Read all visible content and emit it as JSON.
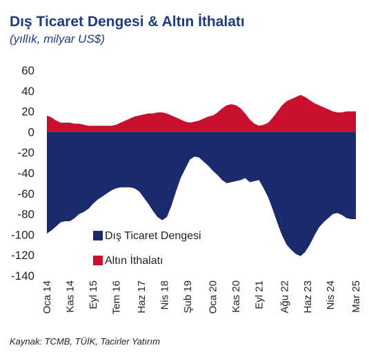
{
  "title": "Dış Ticaret Dengesi & Altın İthalatı",
  "subtitle": "(yıllık, milyar US$)",
  "source": "Kaynak: TCMB, TÜİK, Tacirler Yatırım",
  "colors": {
    "trade_balance": "#1b2a6b",
    "gold_imports": "#c8102e",
    "axis": "#555555"
  },
  "chart_data": {
    "type": "area",
    "y_ticks": [
      "60",
      "40",
      "20",
      "0",
      "-20",
      "-40",
      "-60",
      "-80",
      "-100",
      "-120",
      "-140"
    ],
    "ylim": [
      -140,
      60
    ],
    "x_range": [
      "2014-01",
      "2025-03"
    ],
    "x_ticks": [
      {
        "label": "Oca 14",
        "date": "2014-01"
      },
      {
        "label": "Kas 14",
        "date": "2014-11"
      },
      {
        "label": "Eyl 15",
        "date": "2015-09"
      },
      {
        "label": "Tem 16",
        "date": "2016-07"
      },
      {
        "label": "Haz 17",
        "date": "2017-06"
      },
      {
        "label": "Nis 18",
        "date": "2018-04"
      },
      {
        "label": "Şub 19",
        "date": "2019-02"
      },
      {
        "label": "Oca 20",
        "date": "2020-01"
      },
      {
        "label": "Kas 20",
        "date": "2020-11"
      },
      {
        "label": "Eyl 21",
        "date": "2021-09"
      },
      {
        "label": "Ağu 22",
        "date": "2022-08"
      },
      {
        "label": "Haz 23",
        "date": "2023-06"
      },
      {
        "label": "Nis 24",
        "date": "2024-04"
      },
      {
        "label": "Mar 25",
        "date": "2025-03"
      }
    ],
    "series": [
      {
        "name": "Dış Ticaret Dengesi",
        "points": [
          [
            "2014-01",
            -99
          ],
          [
            "2014-03",
            -96
          ],
          [
            "2014-05",
            -92
          ],
          [
            "2014-07",
            -88
          ],
          [
            "2014-09",
            -87
          ],
          [
            "2014-11",
            -87
          ],
          [
            "2015-01",
            -84
          ],
          [
            "2015-03",
            -80
          ],
          [
            "2015-05",
            -78
          ],
          [
            "2015-07",
            -75
          ],
          [
            "2015-09",
            -70
          ],
          [
            "2015-11",
            -66
          ],
          [
            "2016-01",
            -63
          ],
          [
            "2016-03",
            -60
          ],
          [
            "2016-05",
            -57
          ],
          [
            "2016-07",
            -55
          ],
          [
            "2016-09",
            -54
          ],
          [
            "2016-11",
            -54
          ],
          [
            "2017-01",
            -54
          ],
          [
            "2017-03",
            -55
          ],
          [
            "2017-05",
            -58
          ],
          [
            "2017-07",
            -64
          ],
          [
            "2017-09",
            -70
          ],
          [
            "2017-11",
            -77
          ],
          [
            "2018-01",
            -83
          ],
          [
            "2018-03",
            -86
          ],
          [
            "2018-05",
            -83
          ],
          [
            "2018-07",
            -72
          ],
          [
            "2018-09",
            -58
          ],
          [
            "2018-11",
            -45
          ],
          [
            "2019-01",
            -36
          ],
          [
            "2019-03",
            -27
          ],
          [
            "2019-05",
            -24
          ],
          [
            "2019-07",
            -25
          ],
          [
            "2019-09",
            -29
          ],
          [
            "2019-11",
            -33
          ],
          [
            "2020-01",
            -38
          ],
          [
            "2020-03",
            -42
          ],
          [
            "2020-05",
            -47
          ],
          [
            "2020-07",
            -50
          ],
          [
            "2020-09",
            -49
          ],
          [
            "2020-11",
            -48
          ],
          [
            "2021-01",
            -47
          ],
          [
            "2021-03",
            -45
          ],
          [
            "2021-05",
            -49
          ],
          [
            "2021-07",
            -48
          ],
          [
            "2021-09",
            -47
          ],
          [
            "2021-11",
            -55
          ],
          [
            "2022-01",
            -64
          ],
          [
            "2022-03",
            -76
          ],
          [
            "2022-05",
            -89
          ],
          [
            "2022-07",
            -101
          ],
          [
            "2022-09",
            -110
          ],
          [
            "2022-11",
            -115
          ],
          [
            "2023-01",
            -119
          ],
          [
            "2023-03",
            -121
          ],
          [
            "2023-05",
            -117
          ],
          [
            "2023-07",
            -110
          ],
          [
            "2023-09",
            -101
          ],
          [
            "2023-11",
            -93
          ],
          [
            "2024-01",
            -88
          ],
          [
            "2024-03",
            -84
          ],
          [
            "2024-05",
            -80
          ],
          [
            "2024-07",
            -79
          ],
          [
            "2024-09",
            -81
          ],
          [
            "2024-11",
            -84
          ],
          [
            "2025-01",
            -85
          ],
          [
            "2025-03",
            -85
          ]
        ]
      },
      {
        "name": "Altın İthalatı",
        "points": [
          [
            "2014-01",
            16
          ],
          [
            "2014-03",
            14
          ],
          [
            "2014-05",
            11
          ],
          [
            "2014-07",
            9
          ],
          [
            "2014-09",
            9
          ],
          [
            "2014-11",
            9
          ],
          [
            "2015-01",
            8
          ],
          [
            "2015-03",
            8
          ],
          [
            "2015-05",
            7
          ],
          [
            "2015-07",
            6
          ],
          [
            "2015-09",
            6
          ],
          [
            "2015-11",
            6
          ],
          [
            "2016-01",
            6
          ],
          [
            "2016-03",
            6
          ],
          [
            "2016-05",
            6
          ],
          [
            "2016-07",
            7
          ],
          [
            "2016-09",
            9
          ],
          [
            "2016-11",
            11
          ],
          [
            "2017-01",
            13
          ],
          [
            "2017-03",
            15
          ],
          [
            "2017-05",
            16
          ],
          [
            "2017-07",
            17
          ],
          [
            "2017-09",
            18
          ],
          [
            "2017-11",
            18
          ],
          [
            "2018-01",
            19
          ],
          [
            "2018-03",
            19
          ],
          [
            "2018-05",
            18
          ],
          [
            "2018-07",
            16
          ],
          [
            "2018-09",
            14
          ],
          [
            "2018-11",
            12
          ],
          [
            "2019-01",
            10
          ],
          [
            "2019-03",
            9
          ],
          [
            "2019-05",
            10
          ],
          [
            "2019-07",
            11
          ],
          [
            "2019-09",
            13
          ],
          [
            "2019-11",
            15
          ],
          [
            "2020-01",
            16
          ],
          [
            "2020-03",
            19
          ],
          [
            "2020-05",
            23
          ],
          [
            "2020-07",
            26
          ],
          [
            "2020-09",
            27
          ],
          [
            "2020-11",
            26
          ],
          [
            "2021-01",
            23
          ],
          [
            "2021-03",
            18
          ],
          [
            "2021-05",
            12
          ],
          [
            "2021-07",
            8
          ],
          [
            "2021-09",
            6
          ],
          [
            "2021-11",
            7
          ],
          [
            "2022-01",
            9
          ],
          [
            "2022-03",
            14
          ],
          [
            "2022-05",
            20
          ],
          [
            "2022-07",
            26
          ],
          [
            "2022-09",
            30
          ],
          [
            "2022-11",
            32
          ],
          [
            "2023-01",
            34
          ],
          [
            "2023-03",
            36
          ],
          [
            "2023-05",
            34
          ],
          [
            "2023-07",
            31
          ],
          [
            "2023-09",
            28
          ],
          [
            "2023-11",
            26
          ],
          [
            "2024-01",
            24
          ],
          [
            "2024-03",
            22
          ],
          [
            "2024-05",
            20
          ],
          [
            "2024-07",
            19
          ],
          [
            "2024-09",
            19
          ],
          [
            "2024-11",
            20
          ],
          [
            "2025-01",
            20
          ],
          [
            "2025-03",
            20
          ]
        ]
      }
    ],
    "legend": {
      "position": "lower-middle",
      "labels": [
        "Dış Ticaret Dengesi",
        "Altın İthalatı"
      ]
    },
    "grid": false
  }
}
